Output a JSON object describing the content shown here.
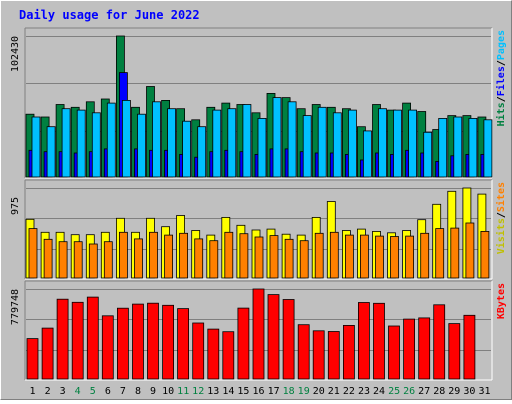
{
  "chart_data": {
    "type": "bar",
    "title": "Daily usage for June 2022",
    "categories": [
      "1",
      "2",
      "3",
      "4",
      "5",
      "6",
      "7",
      "8",
      "9",
      "10",
      "11",
      "12",
      "13",
      "14",
      "15",
      "16",
      "17",
      "18",
      "19",
      "20",
      "21",
      "22",
      "23",
      "24",
      "25",
      "26",
      "27",
      "28",
      "29",
      "30",
      "31"
    ],
    "weekend_days": [
      "4",
      "5",
      "11",
      "12",
      "18",
      "19",
      "25",
      "26"
    ],
    "panels": [
      {
        "id": "hits-files-pages",
        "ymax": 102430,
        "ymax_label": "102430",
        "axis_labels": [
          {
            "text": "Hits",
            "color": "#008040"
          },
          {
            "text": "/",
            "color": "#000000"
          },
          {
            "text": "Files",
            "color": "#0000ff"
          },
          {
            "text": "/",
            "color": "#000000"
          },
          {
            "text": "Pages",
            "color": "#00c0ff"
          }
        ],
        "series": [
          {
            "name": "Hits",
            "color": "#008040",
            "values": [
              46000,
              44000,
              53000,
              51000,
              55000,
              57000,
              102430,
              51000,
              66000,
              56000,
              50000,
              42000,
              51000,
              54000,
              53000,
              47000,
              61000,
              58000,
              50000,
              53000,
              51000,
              50000,
              37000,
              53000,
              49000,
              54000,
              48000,
              35000,
              45000,
              45000,
              44000
            ]
          },
          {
            "name": "Files",
            "color": "#0000ff",
            "values": [
              20000,
              19000,
              19000,
              18000,
              19000,
              21000,
              76000,
              21000,
              20000,
              20000,
              17000,
              15000,
              19000,
              20000,
              19000,
              17000,
              21000,
              21000,
              19000,
              18000,
              18000,
              17000,
              13000,
              18000,
              17000,
              20000,
              18000,
              12000,
              16000,
              17000,
              17000
            ]
          },
          {
            "name": "Pages",
            "color": "#00c0ff",
            "values": [
              44000,
              37000,
              50000,
              49000,
              47000,
              54000,
              56000,
              46000,
              55000,
              50000,
              41000,
              37000,
              49000,
              50000,
              53000,
              43000,
              58000,
              55000,
              45000,
              51000,
              47000,
              49000,
              34000,
              50000,
              49000,
              49000,
              33000,
              43000,
              44000,
              43000,
              42000
            ]
          }
        ]
      },
      {
        "id": "visits-sites",
        "ymax": 975,
        "ymax_label": "975",
        "axis_labels": [
          {
            "text": "Visits",
            "color": "#c0c000"
          },
          {
            "text": "/",
            "color": "#000000"
          },
          {
            "text": "Sites",
            "color": "#ff8000"
          }
        ],
        "series": [
          {
            "name": "Visits",
            "color": "#ffff00",
            "values": [
              640,
              500,
              500,
              475,
              475,
              500,
              650,
              500,
              650,
              560,
              680,
              520,
              470,
              660,
              575,
              525,
              535,
              480,
              470,
              660,
              830,
              520,
              535,
              510,
              495,
              520,
              635,
              800,
              940,
              975,
              910
            ]
          },
          {
            "name": "Sites",
            "color": "#ff8000",
            "values": [
              540,
              425,
              400,
              400,
              375,
              400,
              500,
              430,
              500,
              470,
              490,
              430,
              410,
              500,
              485,
              450,
              465,
              425,
              410,
              490,
              500,
              470,
              470,
              460,
              455,
              460,
              490,
              540,
              545,
              600,
              510
            ]
          }
        ]
      },
      {
        "id": "kbytes",
        "ymax": 779748,
        "ymax_label": "779748",
        "axis_labels": [
          {
            "text": "KBytes",
            "color": "#ff0000"
          }
        ],
        "series": [
          {
            "name": "KBytes",
            "color": "#ff0000",
            "values": [
              355000,
              445000,
              692000,
              666000,
              710000,
              550000,
              615000,
              650000,
              658000,
              640000,
              612000,
              488000,
              436000,
              414000,
              616000,
              779748,
              732000,
              690000,
              474000,
              422000,
              416000,
              468000,
              664000,
              657000,
              463000,
              522000,
              532000,
              644000,
              483000,
              554000,
              0
            ]
          }
        ]
      }
    ]
  }
}
